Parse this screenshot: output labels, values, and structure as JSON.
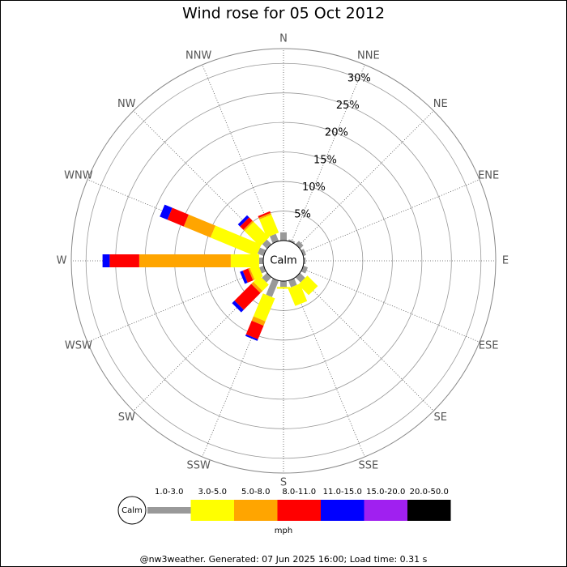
{
  "chart_data": {
    "type": "wind_rose",
    "title": "Wind rose for 05 Oct 2012",
    "directions": [
      "N",
      "NNE",
      "NE",
      "ENE",
      "E",
      "ESE",
      "SE",
      "SSE",
      "S",
      "SSW",
      "SW",
      "WSW",
      "W",
      "WNW",
      "NW",
      "NNW"
    ],
    "rlim": [
      0,
      32.5
    ],
    "rticks": [
      {
        "value": 5,
        "label": "5%"
      },
      {
        "value": 10,
        "label": "10%"
      },
      {
        "value": 15,
        "label": "15%"
      },
      {
        "value": 20,
        "label": "20%"
      },
      {
        "value": 25,
        "label": "25%"
      },
      {
        "value": 30,
        "label": "30%"
      }
    ],
    "center_label": "Calm",
    "unit": "mph",
    "series": [
      {
        "name": "1.0-3.0",
        "color": "#999999",
        "values": [
          1.4,
          0.3,
          0.8,
          0.5,
          0.3,
          0.8,
          1.2,
          1.2,
          1.0,
          3.0,
          1.2,
          0.8,
          0.7,
          1.1,
          1.1,
          1.3
        ]
      },
      {
        "name": "3.0-5.0",
        "color": "#ffff00",
        "values": [
          0,
          0,
          0,
          0,
          0,
          0,
          2.5,
          3.2,
          0.3,
          4.2,
          1.5,
          1.5,
          4.8,
          8.4,
          3.7,
          3.3
        ]
      },
      {
        "name": "5.0-8.0",
        "color": "#ffa500",
        "values": [
          0,
          0,
          0,
          0,
          0,
          0,
          0,
          0,
          0,
          0.8,
          0.5,
          0.3,
          15.5,
          4.9,
          0.3,
          0.3
        ]
      },
      {
        "name": "8.0-11.0",
        "color": "#ff0000",
        "values": [
          0,
          0,
          0,
          0,
          0,
          0,
          0,
          0,
          0,
          2.5,
          4.0,
          1.0,
          5.0,
          3.0,
          0.8,
          0.3
        ]
      },
      {
        "name": "11.0-15.0",
        "color": "#0000ff",
        "values": [
          0,
          0,
          0,
          0,
          0,
          0,
          0,
          0,
          0,
          0.3,
          0.6,
          0.5,
          1.2,
          1.4,
          0.5,
          0
        ]
      },
      {
        "name": "15.0-20.0",
        "color": "#a020f0",
        "values": [
          0,
          0,
          0,
          0,
          0,
          0,
          0,
          0,
          0,
          0,
          0,
          0,
          0,
          0,
          0,
          0
        ]
      },
      {
        "name": "20.0-50.0",
        "color": "#000000",
        "values": [
          0,
          0,
          0,
          0,
          0,
          0,
          0,
          0,
          0,
          0,
          0,
          0,
          0,
          0,
          0,
          0
        ]
      }
    ]
  },
  "footer": "@nw3weather. Generated: 07 Jun 2025 16:00; Load time: 0.31 s"
}
